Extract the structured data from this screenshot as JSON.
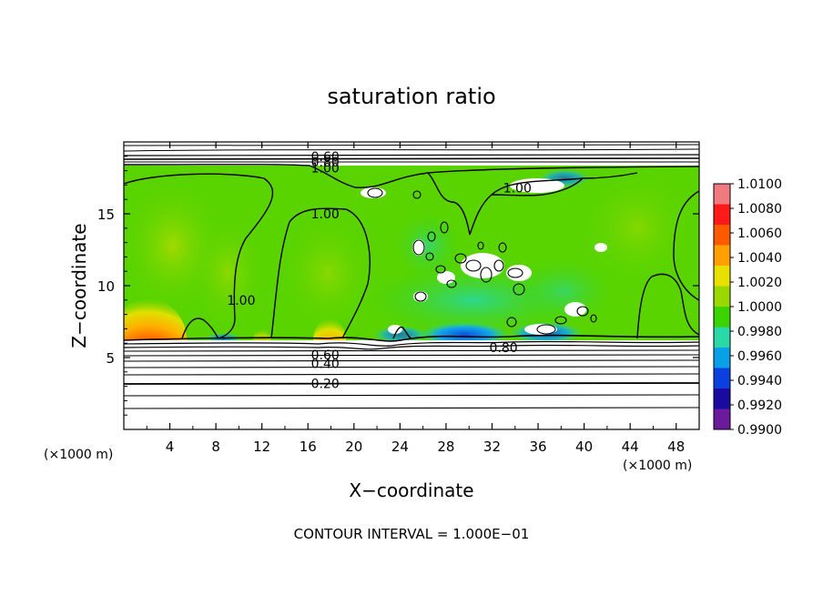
{
  "chart_data": {
    "type": "heatmap",
    "title": "saturation ratio",
    "xlabel": "X−coordinate",
    "ylabel": "Z−coordinate",
    "x_unit": "(×1000 m)",
    "y_unit": "(×1000 m)",
    "footer": "CONTOUR INTERVAL = 1.000E−01",
    "xlim": [
      0,
      50
    ],
    "ylim": [
      0,
      20
    ],
    "x_ticks": [
      4,
      8,
      12,
      16,
      20,
      24,
      28,
      32,
      36,
      40,
      44,
      48
    ],
    "x_tick_labels": [
      "4",
      "8",
      "12",
      "16",
      "20",
      "24",
      "28",
      "32",
      "36",
      "40",
      "44",
      "48"
    ],
    "y_ticks": [
      5,
      10,
      15
    ],
    "y_tick_labels": [
      "5",
      "10",
      "15"
    ],
    "colorbar": {
      "levels": [
        1.01,
        1.008,
        1.006,
        1.004,
        1.002,
        1.0,
        0.998,
        0.996,
        0.994,
        0.992,
        0.99
      ],
      "labels": [
        "1.0100",
        "1.0080",
        "1.0060",
        "1.0040",
        "1.0020",
        "1.0000",
        "0.9980",
        "0.9960",
        "0.9940",
        "0.9920",
        "0.9900"
      ],
      "colors": [
        "#f07a80",
        "#ff1a1a",
        "#ff5a00",
        "#ffa000",
        "#e8e000",
        "#9ad800",
        "#3cd400",
        "#2ad8a8",
        "#0aa0e8",
        "#0a40e0",
        "#1a0aa0",
        "#6a1a9a"
      ]
    },
    "contour_interval": 0.1,
    "contour_labels": [
      {
        "text": "0.60",
        "x": 17.5,
        "z": 19.0
      },
      {
        "text": "0.80",
        "x": 17.5,
        "z": 18.6
      },
      {
        "text": "1.00",
        "x": 17.5,
        "z": 18.2
      },
      {
        "text": "1.00",
        "x": 17.5,
        "z": 15.0
      },
      {
        "text": "1.00",
        "x": 10.2,
        "z": 9.0
      },
      {
        "text": "1.00",
        "x": 34.2,
        "z": 16.8
      },
      {
        "text": "0.80",
        "x": 33.0,
        "z": 5.7
      },
      {
        "text": "0.60",
        "x": 17.5,
        "z": 5.2
      },
      {
        "text": "0.40",
        "x": 17.5,
        "z": 4.6
      },
      {
        "text": "0.20",
        "x": 17.5,
        "z": 3.2
      }
    ]
  }
}
